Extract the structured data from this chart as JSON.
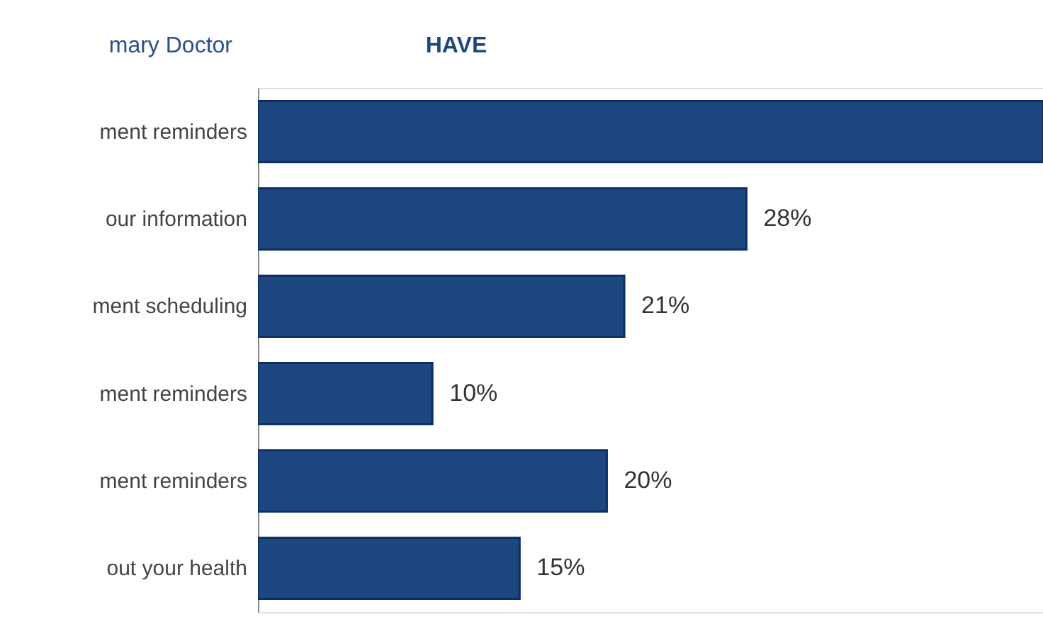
{
  "chart_data": {
    "type": "bar",
    "orientation": "horizontal",
    "categories": [
      "ment reminders",
      "our information",
      "ment scheduling",
      "ment reminders",
      "ment reminders",
      "out your health"
    ],
    "values": [
      45,
      28,
      21,
      10,
      20,
      15
    ],
    "value_labels": [
      null,
      "28%",
      "21%",
      "10%",
      "20%",
      "15%"
    ],
    "color": "#1f477f",
    "xlim": [
      0,
      45
    ],
    "tick_labels": "y",
    "annotations": [
      "mary Doctor",
      "HAVE"
    ]
  }
}
